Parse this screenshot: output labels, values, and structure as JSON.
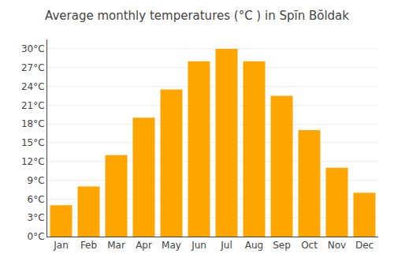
{
  "chart_data": {
    "type": "bar",
    "title": "Average monthly temperatures (°C ) in Spīn Bŏldak",
    "categories": [
      "Jan",
      "Feb",
      "Mar",
      "Apr",
      "May",
      "Jun",
      "Jul",
      "Aug",
      "Sep",
      "Oct",
      "Nov",
      "Dec"
    ],
    "values": [
      5,
      8,
      13,
      19,
      23.5,
      28,
      30,
      28,
      22.5,
      17,
      11,
      7
    ],
    "color": "#FFA500",
    "ylim": [
      0,
      31.5
    ],
    "yticks": [
      {
        "value": 0,
        "label": "0°C"
      },
      {
        "value": 3,
        "label": "3°C"
      },
      {
        "value": 6,
        "label": "6°C"
      },
      {
        "value": 9,
        "label": "9°C"
      },
      {
        "value": 12,
        "label": "12°C"
      },
      {
        "value": 15,
        "label": "15°C"
      },
      {
        "value": 18,
        "label": "18°C"
      },
      {
        "value": 21,
        "label": "21°C"
      },
      {
        "value": 24,
        "label": "24°C"
      },
      {
        "value": 27,
        "label": "27°C"
      },
      {
        "value": 30,
        "label": "30°C"
      }
    ],
    "grid": true
  }
}
